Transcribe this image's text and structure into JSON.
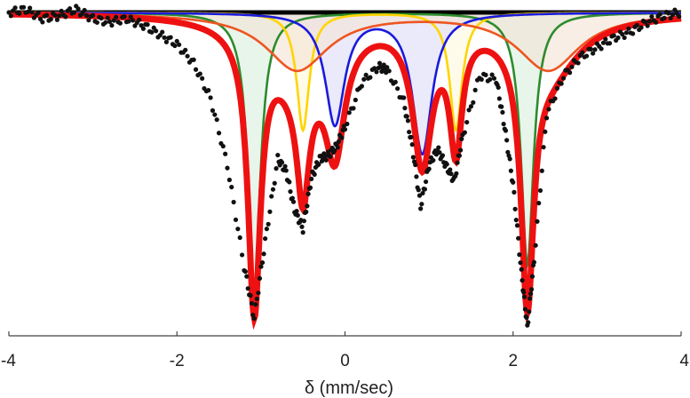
{
  "chart_data": {
    "type": "line",
    "title": "",
    "xlabel": "δ (mm/sec)",
    "ylabel": "",
    "xlim": [
      -4,
      4
    ],
    "ylim": [
      0,
      1
    ],
    "x_tick_labels": [
      {
        "value": -4,
        "label": "-4"
      },
      {
        "value": -2,
        "label": "-2"
      },
      {
        "value": 0,
        "label": "0"
      },
      {
        "value": 2,
        "label": "2"
      },
      {
        "value": 4,
        "label": "4"
      }
    ],
    "series": [
      {
        "color": "#2e8b2e",
        "fill": "#d7eedc",
        "peaks": [
          {
            "x": -1.08,
            "depth": 0.86
          },
          {
            "x": 2.17,
            "depth": 0.79
          }
        ]
      },
      {
        "color": "#ffd400",
        "fill": "#fff8dc",
        "peaks": [
          {
            "x": -0.5,
            "depth": 0.37
          },
          {
            "x": 1.32,
            "depth": 0.37
          }
        ]
      },
      {
        "color": "#1a1adc",
        "fill": "#dcdcf8",
        "peaks": [
          {
            "x": -0.12,
            "depth": 0.35
          },
          {
            "x": 0.92,
            "depth": 0.44
          }
        ]
      },
      {
        "color": "#ee5522",
        "fill": "#f4e2d4",
        "peaks": [
          {
            "x": -0.57,
            "depth": 0.18
          },
          {
            "x": 2.42,
            "depth": 0.18
          }
        ]
      }
    ],
    "fit_color": "#ee1111",
    "data_color": "#111111",
    "baseline_color": "#000000",
    "data_points": [
      [
        -4.0,
        0.0
      ],
      [
        -3.8,
        -0.01
      ],
      [
        -3.6,
        0.02
      ],
      [
        -3.4,
        0.01
      ],
      [
        -3.2,
        -0.01
      ],
      [
        -3.0,
        0.02
      ],
      [
        -2.8,
        0.03
      ],
      [
        -2.6,
        0.02
      ],
      [
        -2.4,
        0.04
      ],
      [
        -2.2,
        0.07
      ],
      [
        -2.0,
        0.1
      ],
      [
        -1.8,
        0.16
      ],
      [
        -1.6,
        0.27
      ],
      [
        -1.4,
        0.48
      ],
      [
        -1.2,
        0.8
      ],
      [
        -1.08,
        0.96
      ],
      [
        -0.95,
        0.72
      ],
      [
        -0.8,
        0.46
      ],
      [
        -0.7,
        0.5
      ],
      [
        -0.6,
        0.62
      ],
      [
        -0.5,
        0.68
      ],
      [
        -0.4,
        0.52
      ],
      [
        -0.3,
        0.46
      ],
      [
        -0.2,
        0.45
      ],
      [
        -0.1,
        0.42
      ],
      [
        0.0,
        0.36
      ],
      [
        0.2,
        0.22
      ],
      [
        0.4,
        0.17
      ],
      [
        0.5,
        0.18
      ],
      [
        0.7,
        0.28
      ],
      [
        0.8,
        0.42
      ],
      [
        0.9,
        0.61
      ],
      [
        1.0,
        0.48
      ],
      [
        1.1,
        0.43
      ],
      [
        1.2,
        0.48
      ],
      [
        1.3,
        0.53
      ],
      [
        1.4,
        0.39
      ],
      [
        1.6,
        0.2
      ],
      [
        1.8,
        0.21
      ],
      [
        1.9,
        0.36
      ],
      [
        2.0,
        0.54
      ],
      [
        2.1,
        0.82
      ],
      [
        2.17,
        0.99
      ],
      [
        2.25,
        0.78
      ],
      [
        2.4,
        0.32
      ],
      [
        2.6,
        0.2
      ],
      [
        2.8,
        0.14
      ],
      [
        3.0,
        0.11
      ],
      [
        3.2,
        0.08
      ],
      [
        3.4,
        0.06
      ],
      [
        3.6,
        0.03
      ],
      [
        3.8,
        0.01
      ],
      [
        4.0,
        0.0
      ]
    ]
  }
}
